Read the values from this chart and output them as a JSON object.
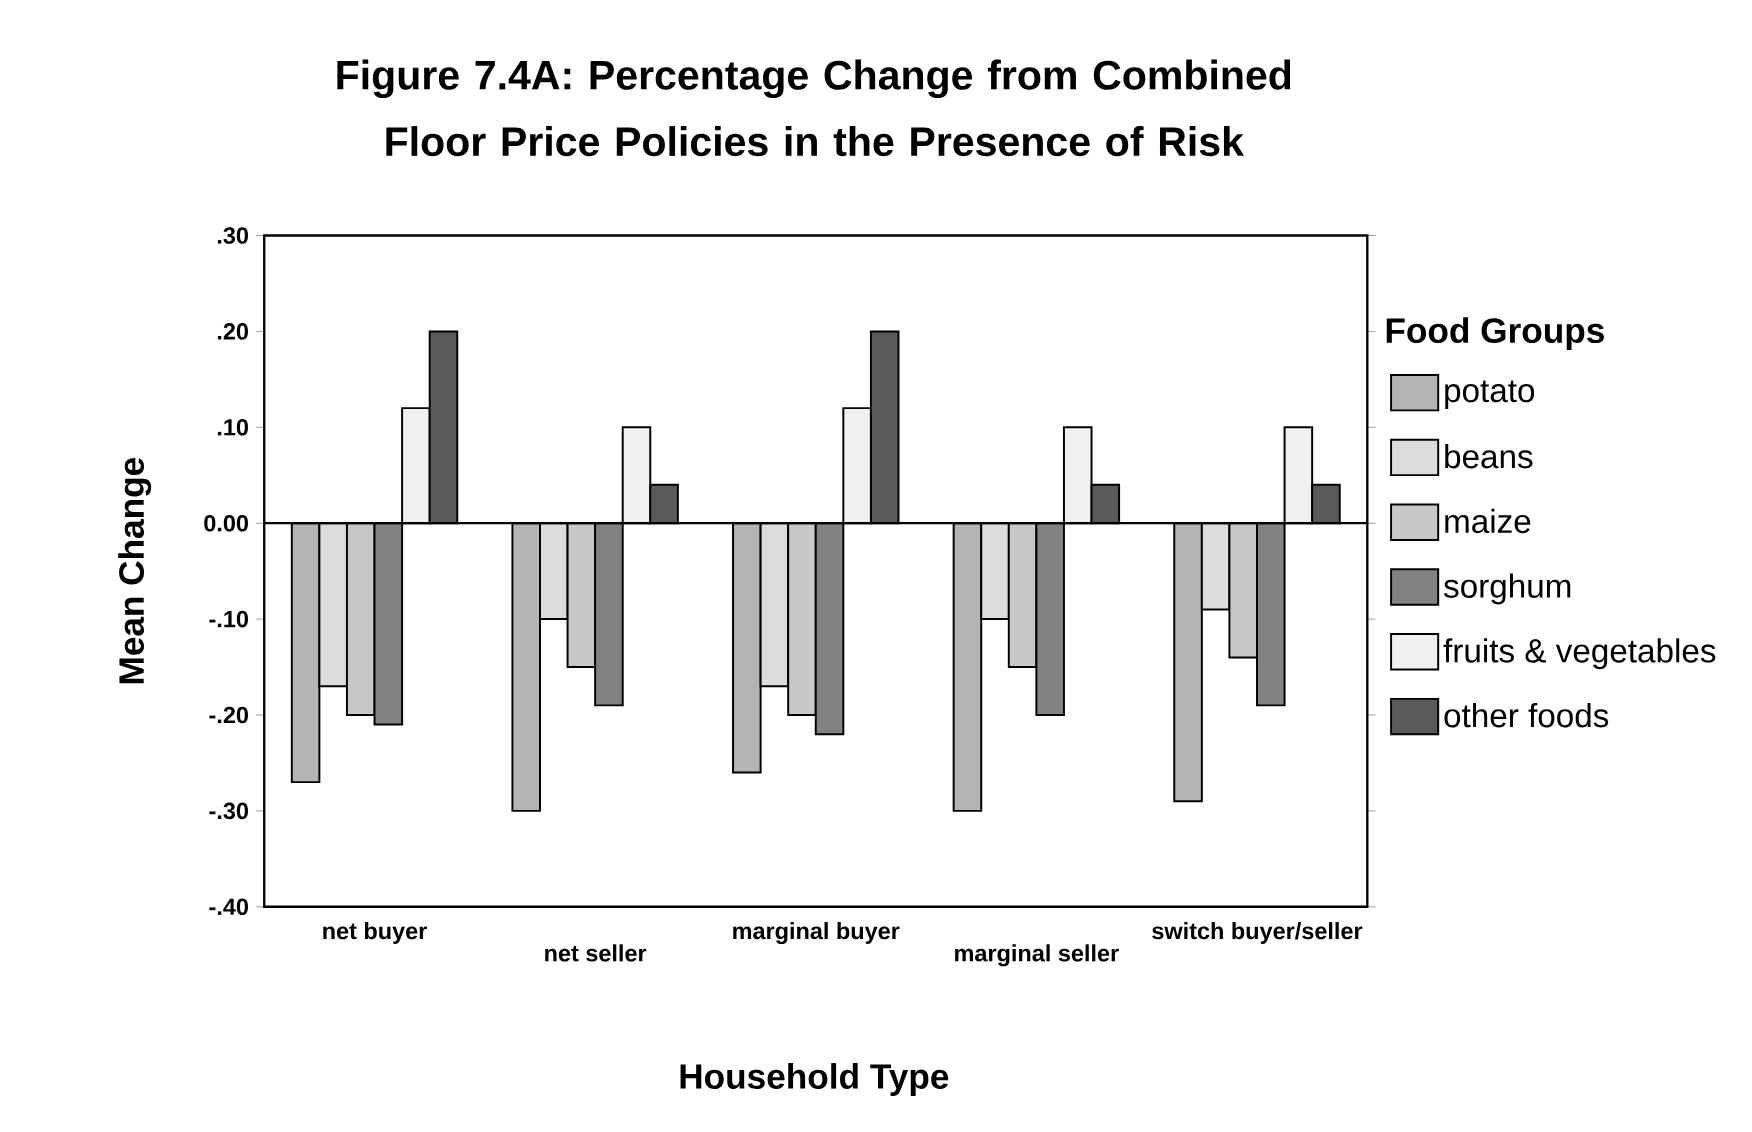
{
  "chart_data": {
    "type": "bar",
    "title": "Figure 7.4A:  Percentage Change from Combined Floor Price  Policies in the Presence of Risk",
    "xlabel": "Household Type",
    "ylabel": "Mean Change",
    "legend_title": "Food Groups",
    "legend": "right",
    "categories": [
      "net buyer",
      "net seller",
      "marginal buyer",
      "marginal seller",
      "switch buyer/seller"
    ],
    "series": [
      {
        "name": "potato",
        "color": "#b4b4b4",
        "values": [
          -0.27,
          -0.3,
          -0.26,
          -0.3,
          -0.29
        ]
      },
      {
        "name": "beans",
        "color": "#dcdcdc",
        "values": [
          -0.17,
          -0.1,
          -0.17,
          -0.1,
          -0.09
        ]
      },
      {
        "name": "maize",
        "color": "#c8c8c8",
        "values": [
          -0.2,
          -0.15,
          -0.2,
          -0.15,
          -0.14
        ]
      },
      {
        "name": "sorghum",
        "color": "#828282",
        "values": [
          -0.21,
          -0.19,
          -0.22,
          -0.2,
          -0.19
        ]
      },
      {
        "name": "fruits & vegetables",
        "color": "#f0f0f0",
        "values": [
          0.12,
          0.1,
          0.12,
          0.1,
          0.1
        ]
      },
      {
        "name": "other foods",
        "color": "#5a5a5a",
        "values": [
          0.2,
          0.04,
          0.2,
          0.04,
          0.04
        ]
      }
    ],
    "ylim": [
      -0.4,
      0.3
    ],
    "yticks": [
      {
        "value": 0.3,
        "label": ".30"
      },
      {
        "value": 0.2,
        "label": ".20"
      },
      {
        "value": 0.1,
        "label": ".10"
      },
      {
        "value": 0,
        "label": "0.00"
      },
      {
        "value": -0.1,
        "label": "-.10"
      },
      {
        "value": -0.2,
        "label": "-.20"
      },
      {
        "value": -0.3,
        "label": "-.30"
      },
      {
        "value": -0.4,
        "label": "-.40"
      }
    ]
  }
}
